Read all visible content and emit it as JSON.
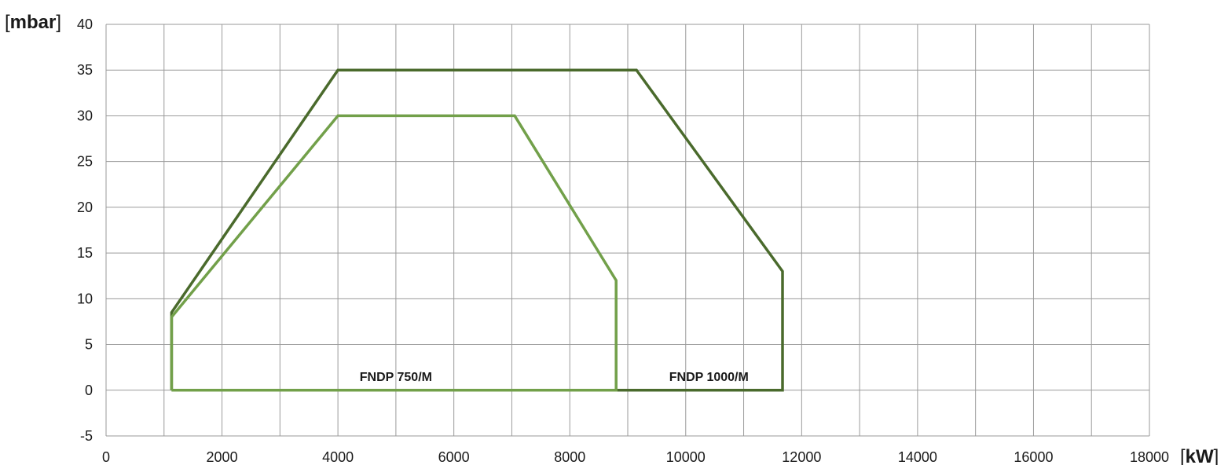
{
  "chart_data": {
    "type": "area",
    "title": "",
    "xlabel": "kW",
    "ylabel": "mbar",
    "xlim": [
      0,
      18000
    ],
    "ylim": [
      -5,
      40
    ],
    "x_ticks": [
      0,
      2000,
      4000,
      6000,
      8000,
      10000,
      12000,
      14000,
      16000,
      18000
    ],
    "y_ticks": [
      -5,
      0,
      5,
      10,
      15,
      20,
      25,
      30,
      35,
      40
    ],
    "x_minor_step": 1000,
    "grid": true,
    "series": [
      {
        "name": "FNDP 1000/M",
        "color": "#4a6a2c",
        "points": [
          [
            1130,
            0
          ],
          [
            1130,
            8.5
          ],
          [
            4000,
            35
          ],
          [
            9150,
            35
          ],
          [
            11670,
            13
          ],
          [
            11670,
            0
          ],
          [
            1130,
            0
          ]
        ],
        "label_at": [
          10400,
          1
        ]
      },
      {
        "name": "FNDP 750/M",
        "color": "#72a04a",
        "points": [
          [
            1130,
            0
          ],
          [
            1130,
            8
          ],
          [
            4000,
            30
          ],
          [
            7050,
            30
          ],
          [
            8800,
            12
          ],
          [
            8800,
            0
          ],
          [
            1130,
            0
          ]
        ],
        "label_at": [
          5000,
          1
        ]
      }
    ]
  }
}
